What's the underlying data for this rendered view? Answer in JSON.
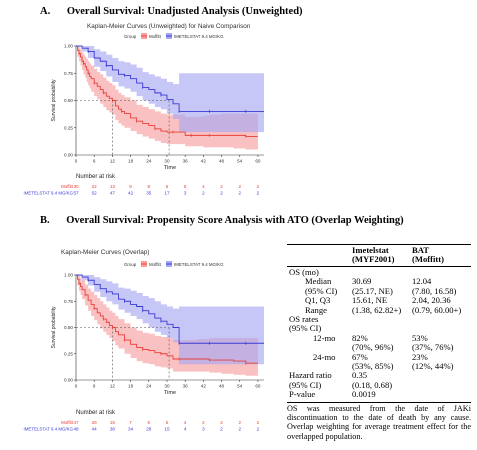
{
  "colors": {
    "moffitt": "#e8403a",
    "imetelstat": "#3a3ad6",
    "moffitt_fill": "#f6a0a0",
    "imetelstat_fill": "#a8a8f2"
  },
  "sections": [
    {
      "letter": "A.",
      "title": "Overall Survival: Unadjusted Analysis (Unweighted)"
    },
    {
      "letter": "B.",
      "title": "Overall Survival: Propensity Score Analysis with ATO (Overlap Weighting)"
    }
  ],
  "chart_data": [
    {
      "type": "line",
      "subtype": "kaplan-meier",
      "title": "Kaplan-Meier Curves (Unweighted) for Naive Comparison",
      "xlabel": "Time",
      "ylabel": "Survival probability",
      "xlim": [
        0,
        62
      ],
      "ylim": [
        0,
        1.0
      ],
      "xticks": [
        "0",
        "6",
        "12",
        "18",
        "24",
        "30",
        "36",
        "42",
        "48",
        "54",
        "60"
      ],
      "yticks": [
        "0.00",
        "0.25",
        "0.50",
        "0.75",
        "1.00"
      ],
      "legend": {
        "title": "Group",
        "position": "top",
        "entries": [
          "Moffitt",
          "IMETELSTAT 9.4 MG/KG"
        ]
      },
      "median_line": {
        "y": 0.5,
        "x_marks": [
          12,
          30.7
        ]
      },
      "series": [
        {
          "name": "Moffitt",
          "color": "#e8403a",
          "x": [
            0,
            0.5,
            1,
            1.5,
            2,
            2.5,
            3,
            3.5,
            4,
            4.5,
            5,
            6,
            7,
            8,
            9,
            10,
            11,
            12,
            13,
            14,
            15,
            16,
            18,
            20,
            22,
            24,
            26,
            28,
            30,
            32,
            34,
            36,
            38,
            40,
            42,
            44,
            48,
            52,
            56,
            60
          ],
          "y": [
            1.0,
            0.96,
            0.93,
            0.9,
            0.86,
            0.84,
            0.81,
            0.78,
            0.75,
            0.72,
            0.7,
            0.66,
            0.63,
            0.6,
            0.57,
            0.54,
            0.52,
            0.5,
            0.45,
            0.42,
            0.4,
            0.38,
            0.34,
            0.31,
            0.29,
            0.27,
            0.24,
            0.22,
            0.21,
            0.21,
            0.21,
            0.18,
            0.18,
            0.18,
            0.18,
            0.18,
            0.18,
            0.18,
            0.17,
            0.17
          ],
          "lower": [
            1.0,
            0.9,
            0.86,
            0.82,
            0.78,
            0.74,
            0.71,
            0.67,
            0.64,
            0.61,
            0.58,
            0.54,
            0.51,
            0.47,
            0.44,
            0.41,
            0.39,
            0.37,
            0.32,
            0.29,
            0.27,
            0.25,
            0.22,
            0.19,
            0.17,
            0.15,
            0.13,
            0.11,
            0.1,
            0.1,
            0.1,
            0.08,
            0.08,
            0.08,
            0.07,
            0.07,
            0.07,
            0.06,
            0.05,
            0.05
          ],
          "upper": [
            1.0,
            1.0,
            0.99,
            0.97,
            0.94,
            0.92,
            0.9,
            0.88,
            0.86,
            0.84,
            0.82,
            0.79,
            0.76,
            0.74,
            0.71,
            0.68,
            0.66,
            0.64,
            0.6,
            0.57,
            0.55,
            0.53,
            0.5,
            0.46,
            0.44,
            0.42,
            0.4,
            0.38,
            0.37,
            0.37,
            0.37,
            0.35,
            0.35,
            0.35,
            0.36,
            0.37,
            0.38,
            0.38,
            0.38,
            0.38
          ]
        },
        {
          "name": "IMETELSTAT 9.4 MG/KG",
          "color": "#3a3ad6",
          "x": [
            0,
            2,
            4,
            6,
            8,
            10,
            12,
            14,
            16,
            18,
            20,
            22,
            24,
            26,
            28,
            30,
            32,
            34,
            36,
            40,
            44,
            48,
            52,
            56,
            60,
            62
          ],
          "y": [
            1.0,
            0.98,
            0.95,
            0.89,
            0.86,
            0.82,
            0.78,
            0.74,
            0.73,
            0.7,
            0.66,
            0.62,
            0.6,
            0.57,
            0.55,
            0.51,
            0.47,
            0.4,
            0.4,
            0.4,
            0.4,
            0.4,
            0.4,
            0.4,
            0.4,
            0.4
          ],
          "lower": [
            1.0,
            0.95,
            0.89,
            0.81,
            0.77,
            0.72,
            0.67,
            0.63,
            0.61,
            0.58,
            0.54,
            0.5,
            0.47,
            0.44,
            0.42,
            0.38,
            0.33,
            0.21,
            0.21,
            0.21,
            0.21,
            0.21,
            0.21,
            0.21,
            0.21,
            0.21
          ],
          "upper": [
            1.0,
            1.0,
            1.0,
            0.97,
            0.95,
            0.92,
            0.89,
            0.86,
            0.85,
            0.83,
            0.8,
            0.76,
            0.74,
            0.72,
            0.7,
            0.67,
            0.65,
            0.75,
            0.75,
            0.75,
            0.75,
            0.75,
            0.75,
            0.75,
            0.75,
            0.75
          ]
        }
      ],
      "risk_table": {
        "title": "Number at risk",
        "rows": [
          {
            "name": "Moffitt",
            "color": "#e8403a",
            "values": [
              "30",
              "22",
              "13",
              "9",
              "8",
              "6",
              "5",
              "4",
              "2",
              "2",
              "2"
            ]
          },
          {
            "name": "IMETELSTAT 9.4 MG/KG",
            "color": "#3a3ad6",
            "values": [
              "57",
              "52",
              "47",
              "42",
              "35",
              "17",
              "3",
              "2",
              "2",
              "2",
              "2"
            ]
          }
        ]
      }
    },
    {
      "type": "line",
      "subtype": "kaplan-meier",
      "title": "Kaplan-Meier Curves (Overlap)",
      "xlabel": "Time",
      "ylabel": "Survival probability",
      "xlim": [
        0,
        62
      ],
      "ylim": [
        0,
        1.0
      ],
      "xticks": [
        "0",
        "6",
        "12",
        "18",
        "24",
        "30",
        "36",
        "42",
        "48",
        "54",
        "60"
      ],
      "yticks": [
        "0.00",
        "0.25",
        "0.50",
        "0.75",
        "1.00"
      ],
      "legend": {
        "title": "Group",
        "position": "top",
        "entries": [
          "Moffitt",
          "IMETELSTAT 9.4 MG/KG"
        ]
      },
      "median_line": {
        "y": 0.5,
        "x_marks": [
          12,
          30.7
        ]
      },
      "series": [
        {
          "name": "Moffitt",
          "color": "#e8403a",
          "x": [
            0,
            0.5,
            1,
            1.5,
            2,
            3,
            4,
            5,
            6,
            7,
            8,
            9,
            10,
            11,
            12,
            13,
            14,
            16,
            18,
            20,
            22,
            24,
            26,
            28,
            30,
            32,
            34,
            36,
            40,
            44,
            48,
            52,
            56,
            60
          ],
          "y": [
            1.0,
            0.96,
            0.92,
            0.89,
            0.86,
            0.81,
            0.76,
            0.72,
            0.68,
            0.64,
            0.61,
            0.58,
            0.55,
            0.52,
            0.5,
            0.46,
            0.43,
            0.38,
            0.34,
            0.31,
            0.29,
            0.28,
            0.26,
            0.25,
            0.23,
            0.2,
            0.2,
            0.2,
            0.2,
            0.19,
            0.19,
            0.18,
            0.16,
            0.16
          ],
          "lower": [
            1.0,
            0.9,
            0.85,
            0.81,
            0.77,
            0.71,
            0.66,
            0.61,
            0.57,
            0.53,
            0.49,
            0.46,
            0.43,
            0.4,
            0.37,
            0.33,
            0.3,
            0.25,
            0.21,
            0.18,
            0.16,
            0.15,
            0.13,
            0.12,
            0.11,
            0.08,
            0.08,
            0.08,
            0.08,
            0.07,
            0.06,
            0.05,
            0.04,
            0.04
          ],
          "upper": [
            1.0,
            1.0,
            0.99,
            0.97,
            0.95,
            0.91,
            0.87,
            0.84,
            0.81,
            0.78,
            0.75,
            0.72,
            0.69,
            0.66,
            0.64,
            0.61,
            0.58,
            0.54,
            0.5,
            0.47,
            0.45,
            0.44,
            0.42,
            0.41,
            0.4,
            0.38,
            0.38,
            0.38,
            0.39,
            0.4,
            0.4,
            0.4,
            0.4,
            0.4
          ]
        },
        {
          "name": "IMETELSTAT 9.4 MG/KG",
          "color": "#3a3ad6",
          "x": [
            0,
            2,
            4,
            6,
            8,
            10,
            12,
            14,
            16,
            18,
            20,
            22,
            24,
            26,
            28,
            30,
            32,
            34,
            36,
            40,
            44,
            48,
            52,
            56,
            60,
            62
          ],
          "y": [
            1.0,
            0.98,
            0.95,
            0.91,
            0.87,
            0.84,
            0.82,
            0.77,
            0.75,
            0.72,
            0.7,
            0.66,
            0.63,
            0.59,
            0.56,
            0.53,
            0.5,
            0.35,
            0.35,
            0.35,
            0.35,
            0.35,
            0.35,
            0.35,
            0.35,
            0.35
          ],
          "lower": [
            1.0,
            0.95,
            0.9,
            0.84,
            0.79,
            0.75,
            0.72,
            0.67,
            0.64,
            0.61,
            0.58,
            0.54,
            0.5,
            0.46,
            0.43,
            0.4,
            0.36,
            0.15,
            0.15,
            0.15,
            0.15,
            0.15,
            0.15,
            0.15,
            0.15,
            0.15
          ],
          "upper": [
            1.0,
            1.0,
            1.0,
            0.98,
            0.96,
            0.94,
            0.92,
            0.88,
            0.87,
            0.85,
            0.83,
            0.8,
            0.78,
            0.75,
            0.72,
            0.7,
            0.68,
            0.7,
            0.7,
            0.7,
            0.7,
            0.7,
            0.7,
            0.7,
            0.7,
            0.7
          ]
        }
      ],
      "risk_table": {
        "title": "Number at risk",
        "rows": [
          {
            "name": "Moffitt",
            "color": "#e8403a",
            "values": [
              "47",
              "29",
              "15",
              "7",
              "6",
              "5",
              "4",
              "2",
              "2",
              "2",
              "2"
            ]
          },
          {
            "name": "IMETELSTAT 9.4 MG/KG",
            "color": "#3a3ad6",
            "values": [
              "48",
              "44",
              "38",
              "34",
              "28",
              "15",
              "4",
              "3",
              "2",
              "2",
              "2"
            ]
          }
        ]
      }
    }
  ],
  "os_table": {
    "col1": [
      "Imetelstat",
      "(MYF2001)"
    ],
    "col2": [
      "BAT",
      "(Moffitt)"
    ],
    "rows": [
      {
        "label": "OS (mo)",
        "indent": 0,
        "v1": "",
        "v2": ""
      },
      {
        "label": "Median",
        "indent": 1,
        "v1": "30.69",
        "v2": "12.04"
      },
      {
        "label": "(95% CI)",
        "indent": 1,
        "v1": "(25.17, NE)",
        "v2": "(7.80, 16.58)"
      },
      {
        "label": "Q1, Q3",
        "indent": 1,
        "v1": "15.61, NE",
        "v2": "2.04, 20.36"
      },
      {
        "label": "Range",
        "indent": 1,
        "v1": "(1.38, 62.82+)",
        "v2": "(0.79, 60.00+)"
      },
      {
        "label": "OS rates",
        "indent": 0,
        "v1": "",
        "v2": ""
      },
      {
        "label": "(95% CI)",
        "indent": 0,
        "v1": "",
        "v2": ""
      },
      {
        "label": "12-mo",
        "indent": 2,
        "v1": "82%",
        "v2": "53%"
      },
      {
        "label": "",
        "indent": 0,
        "v1": "(70%, 96%)",
        "v2": "(37%, 76%)"
      },
      {
        "label": "24-mo",
        "indent": 2,
        "v1": "67%",
        "v2": "23%"
      },
      {
        "label": "",
        "indent": 0,
        "v1": "(53%, 85%)",
        "v2": "(12%, 44%)"
      },
      {
        "label": "Hazard ratio",
        "indent": 0,
        "v1": "0.35",
        "v2": ""
      },
      {
        "label": "(95% CI)",
        "indent": 0,
        "v1": "(0.18, 0.68)",
        "v2": ""
      },
      {
        "label": "P-value",
        "indent": 0,
        "v1": "0.0019",
        "v2": ""
      }
    ],
    "footnote": "OS was measured from the date of JAKi discontinuation to the date of death by any cause. Overlap weighting for average treatment effect for the overlapped population."
  }
}
